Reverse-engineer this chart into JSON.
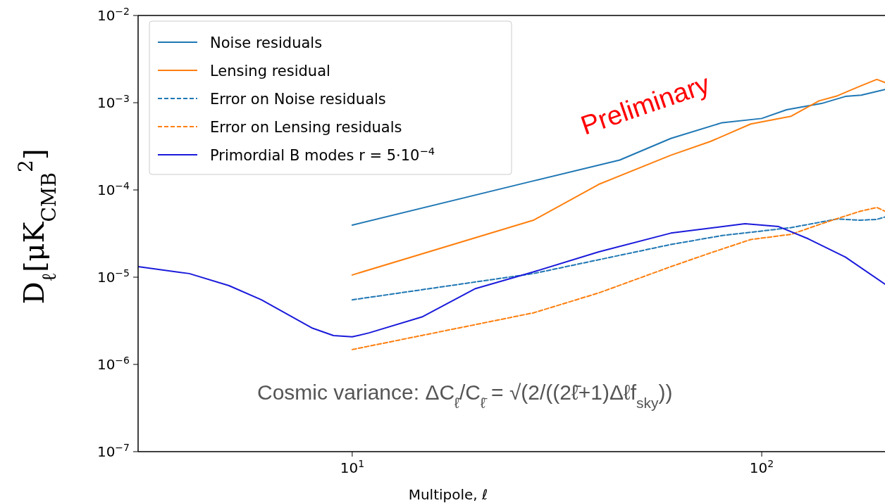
{
  "chart_data": {
    "type": "line",
    "xlabel": "Multipole, ℓ",
    "ylabel": "D$_{ℓ}$[μK$_{CMB}$$^{2}$]",
    "log": "xy",
    "xlim": [
      3,
      200
    ],
    "ylim": [
      1e-07,
      0.01
    ],
    "xticks": [
      {
        "value": 10,
        "label": "10$^{1}$"
      },
      {
        "value": 100,
        "label": "10$^{2}$"
      }
    ],
    "yticks": [
      {
        "value": 1e-07,
        "label": "10$^{−7}$"
      },
      {
        "value": 1e-06,
        "label": "10$^{−6}$"
      },
      {
        "value": 1e-05,
        "label": "10$^{−5}$"
      },
      {
        "value": 0.0001,
        "label": "10$^{−4}$"
      },
      {
        "value": 0.001,
        "label": "10$^{−3}$"
      },
      {
        "value": 0.01,
        "label": "10$^{−2}$"
      }
    ],
    "legend": "top left",
    "grid": false,
    "series": [
      {
        "name": "Noise residuals",
        "color": "#1f77b4",
        "line_style": "solid",
        "x": [
          10,
          27.7,
          45,
          60,
          80,
          100,
          115,
          140,
          160,
          175,
          200
        ],
        "values": [
          3.95e-05,
          0.000127,
          0.00022,
          0.00039,
          0.00059,
          0.00066,
          0.00083,
          0.00098,
          0.00118,
          0.00122,
          0.00142
        ]
      },
      {
        "name": "Lensing residual",
        "color": "#ff7f0e",
        "line_style": "solid",
        "x": [
          10,
          27.7,
          40,
          60,
          75,
          94,
          118,
          138,
          153,
          174,
          191,
          200
        ],
        "values": [
          1.06e-05,
          4.5e-05,
          0.000116,
          0.00025,
          0.00036,
          0.00057,
          0.0007,
          0.00105,
          0.0012,
          0.00155,
          0.00185,
          0.0017
        ]
      },
      {
        "name": "Error on Noise residuals",
        "color": "#1f77b4",
        "line_style": "dashed",
        "x": [
          10,
          27.7,
          60,
          80,
          118,
          153,
          174,
          191,
          200
        ],
        "values": [
          5.5e-06,
          1.1e-05,
          2.37e-05,
          3e-05,
          3.7e-05,
          4.65e-05,
          4.5e-05,
          4.6e-05,
          4.9e-05
        ]
      },
      {
        "name": "Error on Lensing residuals",
        "color": "#ff7f0e",
        "line_style": "dashed",
        "x": [
          10,
          27.7,
          40,
          60,
          75,
          94,
          118,
          138,
          153,
          174,
          191,
          200
        ],
        "values": [
          1.48e-06,
          3.9e-06,
          6.6e-06,
          1.32e-05,
          1.9e-05,
          2.7e-05,
          3.1e-05,
          4e-05,
          4.7e-05,
          5.7e-05,
          6.3e-05,
          5.7e-05
        ]
      },
      {
        "name": "Primordial B modes r = 5·10$^{−4}$",
        "color": "#1a1adb",
        "line_style": "solid",
        "x": [
          3,
          4,
          5,
          6,
          8,
          9,
          10,
          11,
          14.8,
          20,
          27.7,
          40,
          60,
          91,
          110,
          130,
          160,
          200
        ],
        "values": [
          1.32e-05,
          1.1e-05,
          8e-06,
          5.5e-06,
          2.6e-06,
          2.14e-06,
          2.07e-06,
          2.3e-06,
          3.5e-06,
          7.4e-06,
          1.15e-05,
          1.95e-05,
          3.2e-05,
          4.1e-05,
          3.8e-05,
          2.75e-05,
          1.7e-05,
          8.3e-06
        ]
      }
    ],
    "annotations": [
      "Preliminary",
      "Cosmic variance: ΔC$_{ℓ̄}$/C$_{ℓ̄}$ = √(2/((2ℓ̄+1)Δℓf$_{sky}$))"
    ]
  }
}
